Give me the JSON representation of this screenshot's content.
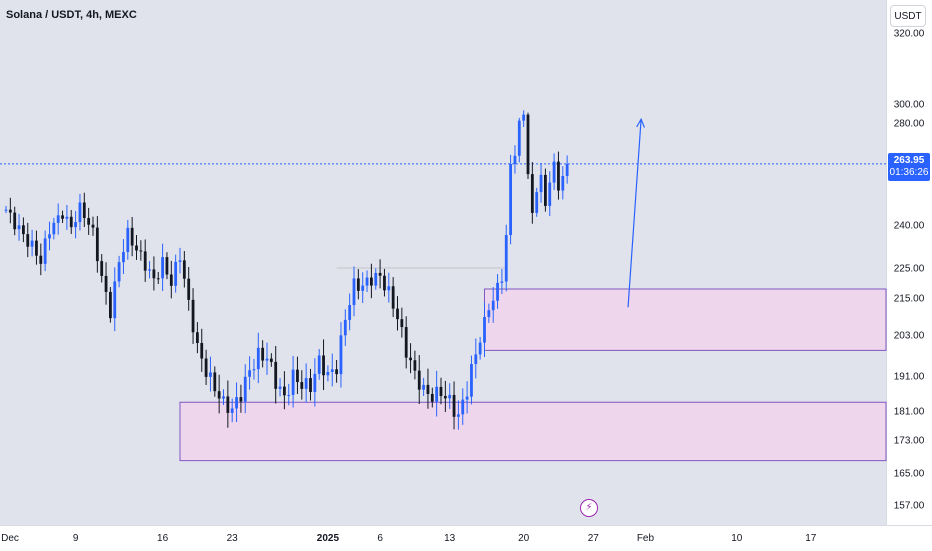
{
  "header": {
    "symbol_title": "Solana / USDT, 4h, MEXC"
  },
  "toolbar": {
    "currency_label": "USDT"
  },
  "current_price": {
    "value": "263.95",
    "countdown": "01:36:26",
    "level": 263.95,
    "color": "#2962ff"
  },
  "colors": {
    "up": "#2962ff",
    "down": "#131722",
    "zone_fill": "#f3d3ec",
    "zone_border": "#7e57c2",
    "arrow": "#2962ff"
  },
  "chart_data": {
    "type": "candlestick",
    "title": "Solana / USDT, 4h, MEXC",
    "y_ticks": [
      "320.00",
      "300.00",
      "280.00",
      "240.00",
      "225.00",
      "215.00",
      "203.00",
      "191.00",
      "181.00",
      "173.00",
      "165.00",
      "157.00"
    ],
    "y_tick_values": [
      320,
      300,
      280,
      240,
      225,
      215,
      203,
      191,
      181,
      173,
      165,
      157
    ],
    "x_ticks": [
      {
        "label": "Dec",
        "idx": 0,
        "bold": false
      },
      {
        "label": "9",
        "idx": 16,
        "bold": false
      },
      {
        "label": "16",
        "idx": 36,
        "bold": false
      },
      {
        "label": "23",
        "idx": 52,
        "bold": false
      },
      {
        "label": "2025",
        "idx": 74,
        "bold": true
      },
      {
        "label": "6",
        "idx": 86,
        "bold": false
      },
      {
        "label": "13",
        "idx": 102,
        "bold": false
      },
      {
        "label": "20",
        "idx": 119,
        "bold": false
      },
      {
        "label": "27",
        "idx": 135,
        "bold": false
      },
      {
        "label": "Feb",
        "idx": 147,
        "bold": false
      },
      {
        "label": "10",
        "idx": 168,
        "bold": false
      },
      {
        "label": "17",
        "idx": 185,
        "bold": false
      }
    ],
    "series_path": [
      [
        0,
        246
      ],
      [
        3,
        240
      ],
      [
        6,
        232
      ],
      [
        8,
        226
      ],
      [
        10,
        238
      ],
      [
        13,
        246
      ],
      [
        15,
        240
      ],
      [
        17,
        246
      ],
      [
        20,
        236
      ],
      [
        22,
        222
      ],
      [
        24,
        212
      ],
      [
        26,
        228
      ],
      [
        28,
        236
      ],
      [
        30,
        230
      ],
      [
        32,
        226
      ],
      [
        34,
        222
      ],
      [
        36,
        228
      ],
      [
        38,
        220
      ],
      [
        40,
        228
      ],
      [
        42,
        212
      ],
      [
        44,
        200
      ],
      [
        46,
        194
      ],
      [
        48,
        188
      ],
      [
        50,
        182
      ],
      [
        52,
        180
      ],
      [
        54,
        186
      ],
      [
        56,
        194
      ],
      [
        58,
        198
      ],
      [
        60,
        196
      ],
      [
        62,
        188
      ],
      [
        64,
        184
      ],
      [
        66,
        192
      ],
      [
        68,
        190
      ],
      [
        70,
        188
      ],
      [
        72,
        194
      ],
      [
        74,
        190
      ],
      [
        76,
        194
      ],
      [
        78,
        210
      ],
      [
        80,
        220
      ],
      [
        82,
        218
      ],
      [
        84,
        220
      ],
      [
        86,
        222
      ],
      [
        88,
        218
      ],
      [
        90,
        210
      ],
      [
        92,
        198
      ],
      [
        94,
        190
      ],
      [
        96,
        186
      ],
      [
        98,
        186
      ],
      [
        100,
        188
      ],
      [
        102,
        184
      ],
      [
        104,
        178
      ],
      [
        106,
        186
      ],
      [
        108,
        198
      ],
      [
        110,
        208
      ],
      [
        111,
        214
      ],
      [
        112,
        215
      ],
      [
        114,
        222
      ],
      [
        115,
        234
      ],
      [
        116,
        262
      ],
      [
        117,
        268
      ],
      [
        118,
        280
      ],
      [
        119,
        290
      ],
      [
        120,
        262
      ],
      [
        121,
        244
      ],
      [
        122,
        256
      ],
      [
        123,
        260
      ],
      [
        124,
        246
      ],
      [
        125,
        258
      ],
      [
        126,
        262
      ],
      [
        127,
        252
      ],
      [
        128,
        260
      ],
      [
        129,
        263.95
      ]
    ]
  },
  "annotations": {
    "zones": [
      {
        "name": "demand-zone-upper",
        "idx_start": 110,
        "y_top": 218,
        "y_bottom": 198.5
      },
      {
        "name": "demand-zone-lower",
        "idx_start": 40,
        "y_top": 183.5,
        "y_bottom": 168
      }
    ],
    "arrow": {
      "from": [
        143,
        212
      ],
      "to": [
        146,
        284
      ]
    },
    "resistance_level": {
      "value": 225,
      "idx_start": 76,
      "idx_end": 115
    }
  }
}
